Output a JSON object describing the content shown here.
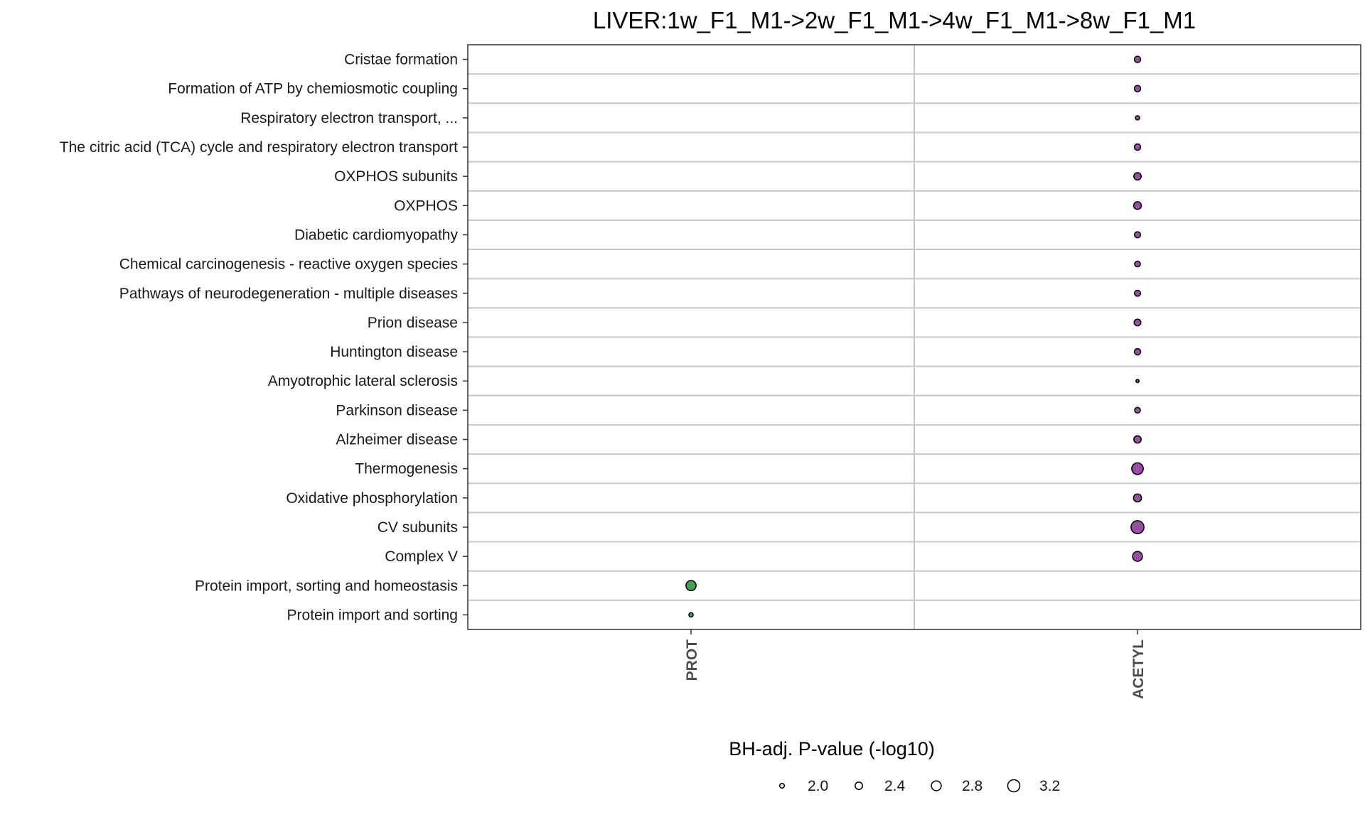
{
  "chart_data": {
    "type": "scatter",
    "title": "LIVER:1w_F1_M1->2w_F1_M1->4w_F1_M1->8w_F1_M1",
    "x_categories": [
      "PROT",
      "ACETYL"
    ],
    "y_categories": [
      "Cristae formation",
      "Formation of ATP by chemiosmotic coupling",
      "Respiratory electron transport, ...",
      "The citric acid (TCA) cycle and respiratory electron transport",
      "OXPHOS subunits",
      "OXPHOS",
      "Diabetic cardiomyopathy",
      "Chemical carcinogenesis - reactive oxygen species",
      "Pathways of neurodegeneration - multiple diseases",
      "Prion disease",
      "Huntington disease",
      "Amyotrophic lateral sclerosis",
      "Parkinson disease",
      "Alzheimer disease",
      "Thermogenesis",
      "Oxidative phosphorylation",
      "CV subunits",
      "Complex V",
      "Protein import, sorting and homeostasis",
      "Protein import and sorting"
    ],
    "points": [
      {
        "x": "ACETYL",
        "y": "Cristae formation",
        "value": 2.25
      },
      {
        "x": "ACETYL",
        "y": "Formation of ATP by chemiosmotic coupling",
        "value": 2.25
      },
      {
        "x": "ACETYL",
        "y": "Respiratory electron transport, ...",
        "value": 1.95
      },
      {
        "x": "ACETYL",
        "y": "The citric acid (TCA) cycle and respiratory electron transport",
        "value": 2.25
      },
      {
        "x": "ACETYL",
        "y": "OXPHOS subunits",
        "value": 2.4
      },
      {
        "x": "ACETYL",
        "y": "OXPHOS",
        "value": 2.45
      },
      {
        "x": "ACETYL",
        "y": "Diabetic cardiomyopathy",
        "value": 2.2
      },
      {
        "x": "ACETYL",
        "y": "Chemical carcinogenesis - reactive oxygen species",
        "value": 2.15
      },
      {
        "x": "ACETYL",
        "y": "Pathways of neurodegeneration - multiple diseases",
        "value": 2.2
      },
      {
        "x": "ACETYL",
        "y": "Prion disease",
        "value": 2.3
      },
      {
        "x": "ACETYL",
        "y": "Huntington disease",
        "value": 2.25
      },
      {
        "x": "ACETYL",
        "y": "Amyotrophic lateral sclerosis",
        "value": 1.8
      },
      {
        "x": "ACETYL",
        "y": "Parkinson disease",
        "value": 2.15
      },
      {
        "x": "ACETYL",
        "y": "Alzheimer disease",
        "value": 2.4
      },
      {
        "x": "ACETYL",
        "y": "Thermogenesis",
        "value": 3.1
      },
      {
        "x": "ACETYL",
        "y": "Oxidative phosphorylation",
        "value": 2.5
      },
      {
        "x": "ACETYL",
        "y": "CV subunits",
        "value": 3.35
      },
      {
        "x": "ACETYL",
        "y": "Complex V",
        "value": 2.8
      },
      {
        "x": "PROT",
        "y": "Protein import, sorting and homeostasis",
        "value": 2.85
      },
      {
        "x": "PROT",
        "y": "Protein import and sorting",
        "value": 1.95
      }
    ],
    "colors": {
      "PROT": "#3fa34d",
      "ACETYL": "#984ea3"
    },
    "legend": {
      "title": "BH-adj. P-value (-log10)",
      "position": "bottom",
      "breaks": [
        2.0,
        2.4,
        2.8,
        3.2
      ],
      "labels": [
        "2.0",
        "2.4",
        "2.8",
        "3.2"
      ]
    },
    "grid": true
  }
}
